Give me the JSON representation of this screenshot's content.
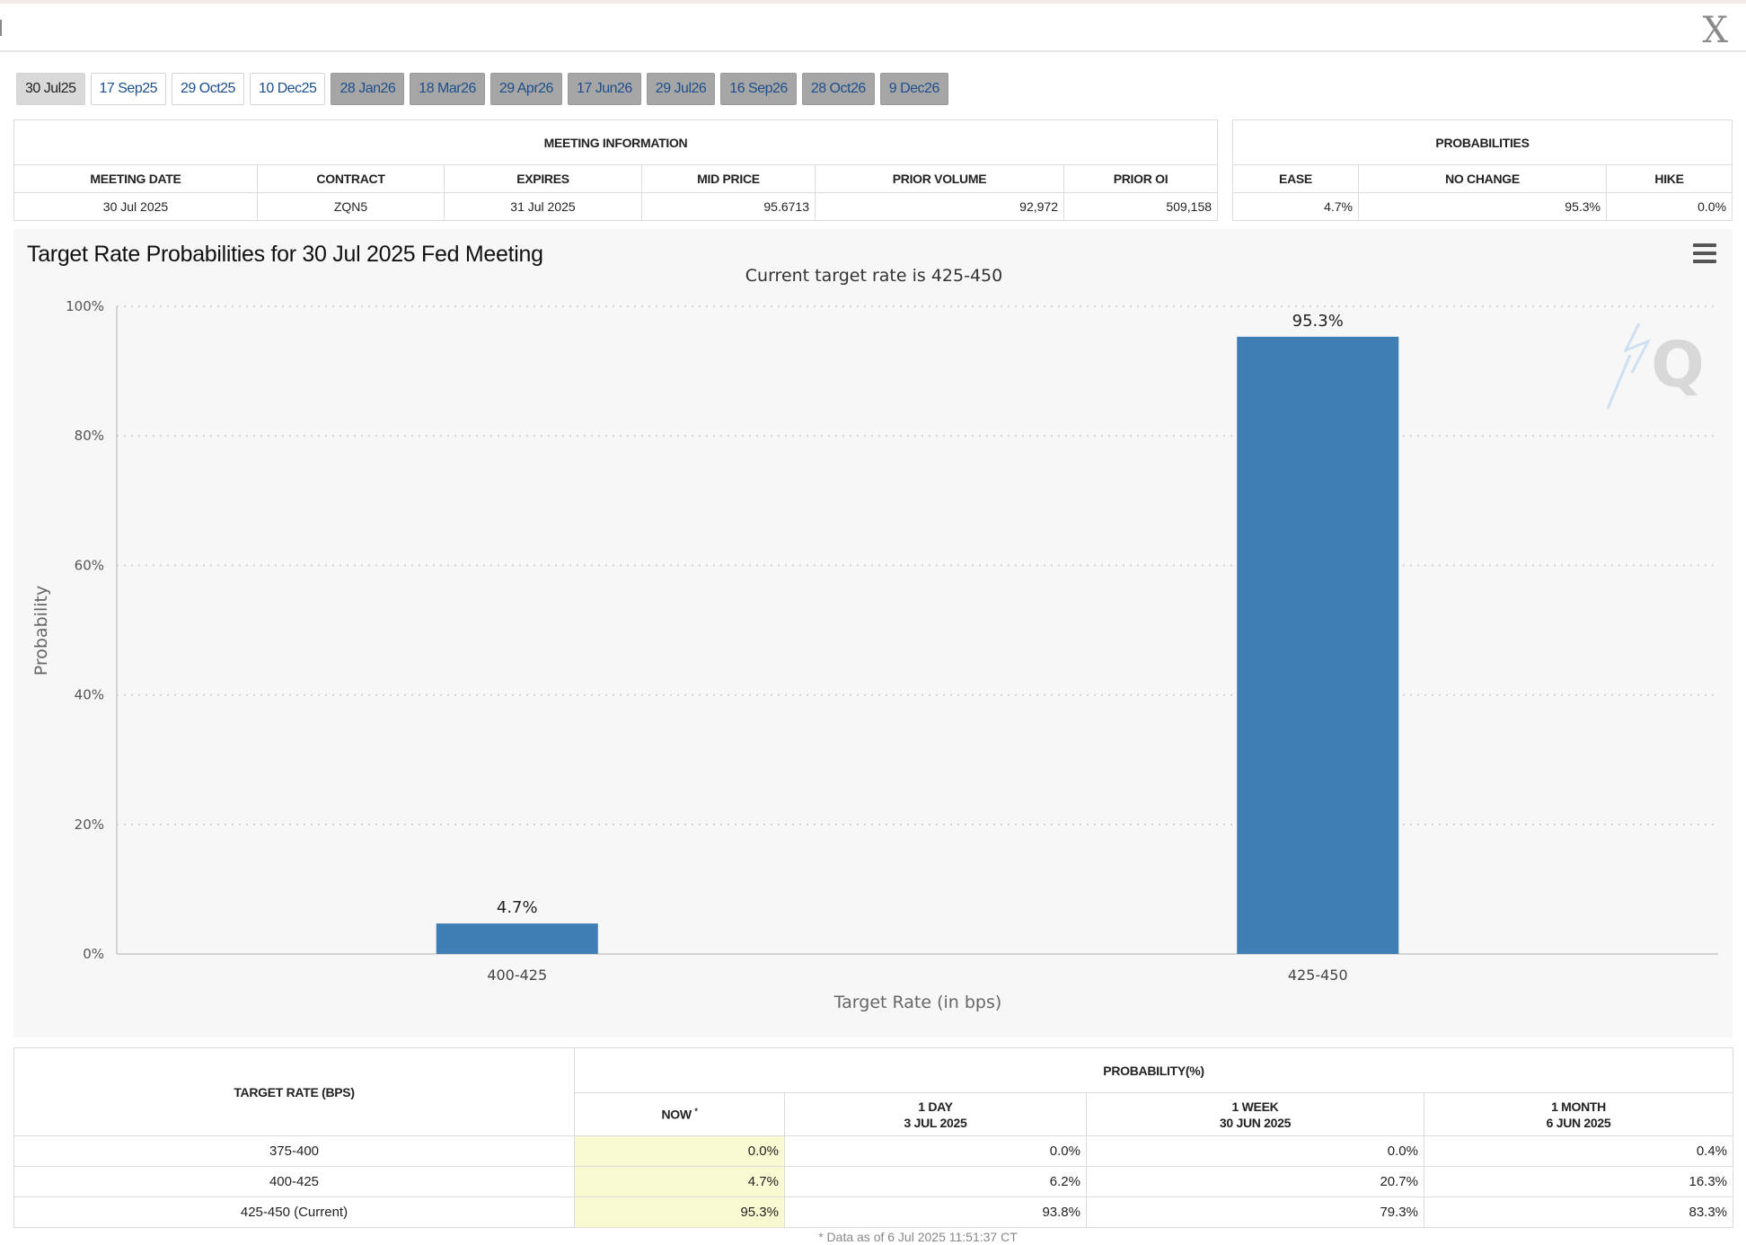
{
  "window": {
    "close_label": "X"
  },
  "tabs": [
    {
      "label": "30 Jul25",
      "state": "active"
    },
    {
      "label": "17 Sep25",
      "state": "normal"
    },
    {
      "label": "29 Oct25",
      "state": "normal"
    },
    {
      "label": "10 Dec25",
      "state": "normal"
    },
    {
      "label": "28 Jan26",
      "state": "dim"
    },
    {
      "label": "18 Mar26",
      "state": "dim"
    },
    {
      "label": "29 Apr26",
      "state": "dim"
    },
    {
      "label": "17 Jun26",
      "state": "dim"
    },
    {
      "label": "29 Jul26",
      "state": "dim"
    },
    {
      "label": "16 Sep26",
      "state": "dim"
    },
    {
      "label": "28 Oct26",
      "state": "dim"
    },
    {
      "label": "9 Dec26",
      "state": "dim"
    }
  ],
  "meeting_info": {
    "title": "MEETING INFORMATION",
    "headers": [
      "MEETING DATE",
      "CONTRACT",
      "EXPIRES",
      "MID PRICE",
      "PRIOR VOLUME",
      "PRIOR OI"
    ],
    "values": [
      "30 Jul 2025",
      "ZQN5",
      "31 Jul 2025",
      "95.6713",
      "92,972",
      "509,158"
    ]
  },
  "probabilities": {
    "title": "PROBABILITIES",
    "headers": [
      "EASE",
      "NO CHANGE",
      "HIKE"
    ],
    "values": [
      "4.7%",
      "95.3%",
      "0.0%"
    ]
  },
  "chart_data": {
    "type": "bar",
    "title": "Target Rate Probabilities for 30 Jul 2025 Fed Meeting",
    "subtitle": "Current target rate is 425-450",
    "xlabel": "Target Rate (in bps)",
    "ylabel": "Probability",
    "categories": [
      "400-425",
      "425-450"
    ],
    "values": [
      4.7,
      95.3
    ],
    "data_labels": [
      "4.7%",
      "95.3%"
    ],
    "ylim": [
      0,
      100
    ],
    "yticks": [
      0,
      20,
      40,
      60,
      80,
      100
    ],
    "ytick_labels": [
      "0%",
      "20%",
      "40%",
      "60%",
      "80%",
      "100%"
    ],
    "grid": true,
    "bar_color": "#3f7db5",
    "watermark": "Q"
  },
  "rate_table": {
    "col_target": "TARGET RATE (BPS)",
    "col_prob": "PROBABILITY(%)",
    "sub_headers": [
      {
        "l1": "NOW",
        "l2": ""
      },
      {
        "l1": "1 DAY",
        "l2": "3 JUL 2025"
      },
      {
        "l1": "1 WEEK",
        "l2": "30 JUN 2025"
      },
      {
        "l1": "1 MONTH",
        "l2": "6 JUN 2025"
      }
    ],
    "now_marker": "*",
    "rows": [
      {
        "rate": "375-400",
        "now": "0.0%",
        "day": "0.0%",
        "week": "0.0%",
        "month": "0.4%"
      },
      {
        "rate": "400-425",
        "now": "4.7%",
        "day": "6.2%",
        "week": "20.7%",
        "month": "16.3%"
      },
      {
        "rate": "425-450 (Current)",
        "now": "95.3%",
        "day": "93.8%",
        "week": "79.3%",
        "month": "83.3%"
      }
    ],
    "footnote": "* Data as of 6 Jul 2025 11:51:37 CT"
  }
}
